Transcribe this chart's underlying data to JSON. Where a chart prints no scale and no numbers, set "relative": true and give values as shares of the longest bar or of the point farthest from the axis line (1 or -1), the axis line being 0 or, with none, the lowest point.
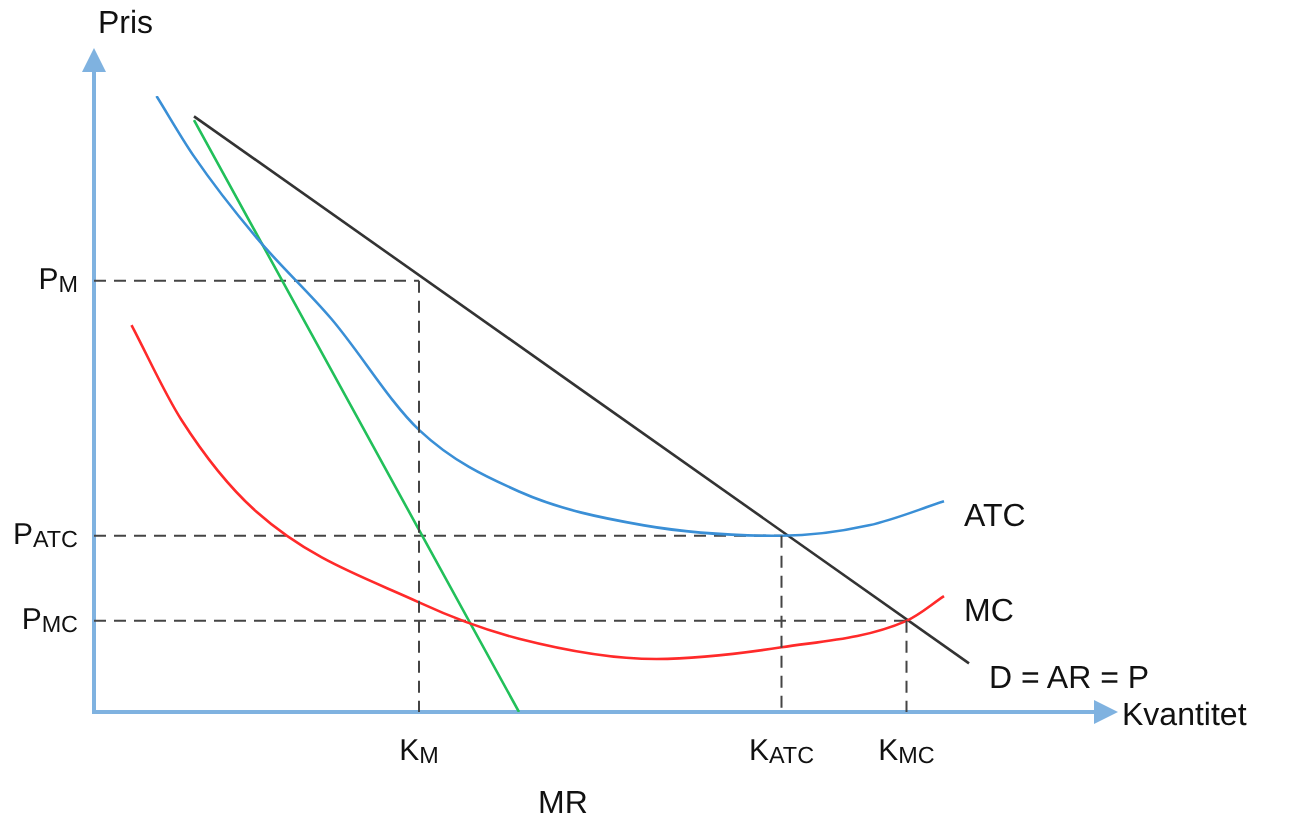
{
  "chart_data": {
    "type": "line",
    "relative": true,
    "xlabel": "Kvantitet",
    "ylabel": "Pris",
    "marker": "none",
    "categories": [
      null,
      null,
      null,
      null,
      null,
      null,
      null,
      null,
      null,
      null,
      null,
      null,
      null,
      null,
      null,
      null,
      null,
      null,
      null,
      null,
      null,
      null,
      null,
      null,
      null,
      null,
      "K$_{M}$",
      null,
      null,
      null,
      null,
      null,
      null,
      null,
      null,
      null,
      null,
      null,
      null,
      null,
      null,
      null,
      null,
      null,
      null,
      null,
      null,
      null,
      null,
      null,
      null,
      null,
      null,
      null,
      null,
      "K$_{ATC}$",
      null,
      null,
      null,
      null,
      null,
      null,
      null,
      null,
      null,
      "K$_{MC}$",
      null,
      null,
      null,
      null,
      null,
      null,
      null,
      null,
      null,
      null,
      null,
      null,
      null,
      null,
      null
    ],
    "ref_lines": [
      {
        "axis": "x",
        "value": "K$_{M}$",
        "color": "#444444",
        "line_style": "dashed"
      },
      {
        "axis": "x",
        "value": "K$_{ATC}$",
        "color": "#444444",
        "line_style": "dashed"
      },
      {
        "axis": "x",
        "value": "K$_{MC}$",
        "color": "#444444",
        "line_style": "dashed"
      }
    ],
    "series": [
      {
        "name": "ATC",
        "color": "#3a8fd6",
        "values": [
          null,
          null,
          null,
          null,
          null,
          1,
          null,
          null,
          0.902,
          null,
          null,
          null,
          null,
          0.77,
          null,
          null,
          null,
          null,
          null,
          0.638,
          null,
          null,
          null,
          null,
          null,
          null,
          0.458,
          null,
          null,
          null,
          null,
          null,
          null,
          null,
          0.358,
          null,
          null,
          null,
          null,
          null,
          null,
          null,
          null,
          null,
          0.303,
          null,
          null,
          null,
          null,
          null,
          null,
          null,
          null,
          null,
          null,
          0.286,
          null,
          null,
          null,
          null,
          null,
          null,
          0.303,
          null,
          null,
          null,
          null,
          null,
          0.342,
          null,
          null,
          null,
          null,
          null,
          null,
          null,
          null,
          null,
          null,
          null,
          null
        ]
      },
      {
        "name": "MC",
        "color": "#ff2a2a",
        "values": [
          null,
          null,
          null,
          0.628,
          null,
          null,
          null,
          0.474,
          null,
          null,
          null,
          null,
          null,
          0.325,
          null,
          null,
          null,
          null,
          null,
          null,
          null,
          null,
          null,
          null,
          null,
          null,
          0.178,
          null,
          null,
          null,
          null,
          null,
          null,
          null,
          0.119,
          null,
          null,
          null,
          null,
          null,
          null,
          null,
          null,
          null,
          null,
          0.086,
          null,
          null,
          null,
          null,
          null,
          null,
          null,
          null,
          null,
          0.105,
          null,
          null,
          null,
          null,
          null,
          null,
          null,
          null,
          null,
          0.148,
          null,
          null,
          0.188,
          null,
          null,
          null,
          null,
          null,
          null,
          null,
          null,
          null,
          null,
          null,
          null
        ]
      },
      {
        "name": "MR",
        "color": "#22c05a",
        "values": [
          null,
          null,
          null,
          null,
          null,
          null,
          null,
          null,
          0.961,
          null,
          null,
          null,
          null,
          null,
          null,
          null,
          null,
          null,
          null,
          null,
          null,
          null,
          null,
          null,
          null,
          null,
          null,
          null,
          null,
          null,
          null,
          null,
          null,
          null,
          0,
          null,
          null,
          null,
          null,
          null,
          null,
          null,
          null,
          null,
          null,
          null,
          null,
          null,
          null,
          null,
          null,
          null,
          null,
          null,
          null,
          null,
          null,
          null,
          null,
          null,
          null,
          null,
          null,
          null,
          null,
          null,
          null,
          null,
          null,
          null,
          null,
          null,
          null,
          null,
          null,
          null,
          null,
          null,
          null,
          null,
          null
        ]
      },
      {
        "name": "D = AR = P",
        "color": "#333333",
        "values": [
          null,
          null,
          null,
          null,
          null,
          null,
          null,
          null,
          0.967,
          null,
          null,
          null,
          null,
          null,
          null,
          null,
          null,
          null,
          null,
          null,
          null,
          null,
          null,
          null,
          null,
          null,
          null,
          null,
          null,
          null,
          null,
          null,
          null,
          null,
          null,
          null,
          null,
          null,
          null,
          null,
          null,
          null,
          null,
          null,
          null,
          null,
          null,
          null,
          null,
          null,
          null,
          null,
          null,
          null,
          null,
          null,
          null,
          null,
          null,
          null,
          null,
          null,
          null,
          null,
          null,
          null,
          null,
          null,
          null,
          null,
          0.079,
          null,
          null,
          null,
          null,
          null,
          null,
          null,
          null,
          null,
          null
        ]
      },
      {
        "name": "P$_{M}$",
        "color": "#444444",
        "line_style": "dashed",
        "values": [
          0.7,
          null,
          null,
          null,
          null,
          null,
          null,
          null,
          null,
          null,
          null,
          null,
          null,
          null,
          null,
          null,
          null,
          null,
          null,
          null,
          null,
          null,
          null,
          null,
          null,
          null,
          0.7,
          null,
          null,
          null,
          null,
          null,
          null,
          null,
          null,
          null,
          null,
          null,
          null,
          null,
          null,
          null,
          null,
          null,
          null,
          null,
          null,
          null,
          null,
          null,
          null,
          null,
          null,
          null,
          null,
          null,
          null,
          null,
          null,
          null,
          null,
          null,
          null,
          null,
          null,
          null,
          null,
          null,
          null,
          null,
          null,
          null,
          null,
          null,
          null,
          null,
          null,
          null,
          null,
          null,
          null
        ]
      },
      {
        "name": "P$_{ATC}$",
        "color": "#444444",
        "line_style": "dashed",
        "values": [
          0.286,
          null,
          null,
          null,
          null,
          null,
          null,
          null,
          null,
          null,
          null,
          null,
          null,
          null,
          null,
          null,
          null,
          null,
          null,
          null,
          null,
          null,
          null,
          null,
          null,
          null,
          null,
          null,
          null,
          null,
          null,
          null,
          null,
          null,
          null,
          null,
          null,
          null,
          null,
          null,
          null,
          null,
          null,
          null,
          null,
          null,
          null,
          null,
          null,
          null,
          null,
          null,
          null,
          null,
          null,
          0.286,
          null,
          null,
          null,
          null,
          null,
          null,
          null,
          null,
          null,
          null,
          null,
          null,
          null,
          null,
          null,
          null,
          null,
          null,
          null,
          null,
          null,
          null,
          null,
          null,
          null
        ]
      },
      {
        "name": "P$_{MC}$",
        "color": "#444444",
        "line_style": "dashed",
        "values": [
          0.148,
          null,
          null,
          null,
          null,
          null,
          null,
          null,
          null,
          null,
          null,
          null,
          null,
          null,
          null,
          null,
          null,
          null,
          null,
          null,
          null,
          null,
          null,
          null,
          null,
          null,
          null,
          null,
          null,
          null,
          null,
          null,
          null,
          null,
          null,
          null,
          null,
          null,
          null,
          null,
          null,
          null,
          null,
          null,
          null,
          null,
          null,
          null,
          null,
          null,
          null,
          null,
          null,
          null,
          null,
          null,
          null,
          null,
          null,
          null,
          null,
          null,
          null,
          null,
          null,
          0.148,
          null,
          null,
          null,
          null,
          null,
          null,
          null,
          null,
          null,
          null,
          null,
          null,
          null,
          null,
          null
        ]
      }
    ]
  }
}
